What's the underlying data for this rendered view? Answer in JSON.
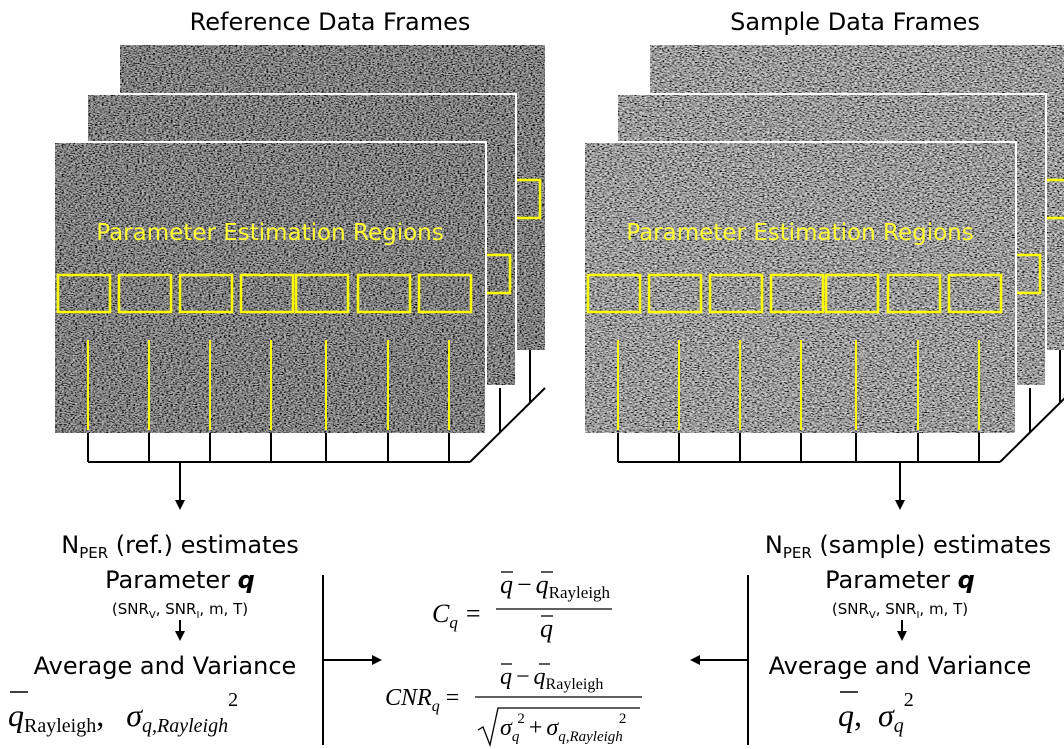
{
  "frames": [
    {
      "title": "Reference Data Frames",
      "region_label": "Parameter Estimation Regions"
    },
    {
      "title": "Sample Data Frames",
      "region_label": "Parameter Estimation Regions"
    }
  ],
  "estimates": [
    {
      "count_symbol": "N",
      "count_subscript": "PER",
      "count_text": " (ref.) estimates",
      "parameter_text": "Parameter ",
      "parameter_symbol": "q",
      "inputs": [
        "(SNR",
        "V",
        ", SNR",
        "I",
        ", m, T)"
      ],
      "stats_label": "Average and Variance",
      "mean_symbol": "q",
      "mean_subscript": "Rayleigh",
      "separator": ",",
      "variance_symbol": "σ",
      "variance_subscript": "q,Rayleigh",
      "variance_power": "2"
    },
    {
      "count_symbol": "N",
      "count_subscript": "PER",
      "count_text": " (sample) estimates",
      "parameter_text": "Parameter ",
      "parameter_symbol": "q",
      "inputs": [
        "(SNR",
        "V",
        ", SNR",
        "I",
        ", m, T)"
      ],
      "stats_label": "Average and Variance",
      "mean_symbol": "q",
      "separator": ",",
      "variance_symbol": "σ",
      "variance_subscript": "q",
      "variance_power": "2"
    }
  ],
  "formulas": {
    "contrast": {
      "lhs": "C",
      "lhs_subscript": "q",
      "equals": "=",
      "numerator": [
        "q",
        "−",
        "q",
        "Rayleigh"
      ],
      "denominator": "q"
    },
    "cnr": {
      "lhs": "CNR",
      "lhs_subscript": "q",
      "equals": "=",
      "numerator": [
        "q",
        "−",
        "q",
        "Rayleigh"
      ],
      "denominator": [
        "σ",
        "q",
        "2",
        "+",
        "σ",
        "q,Rayleigh",
        "2"
      ]
    }
  }
}
